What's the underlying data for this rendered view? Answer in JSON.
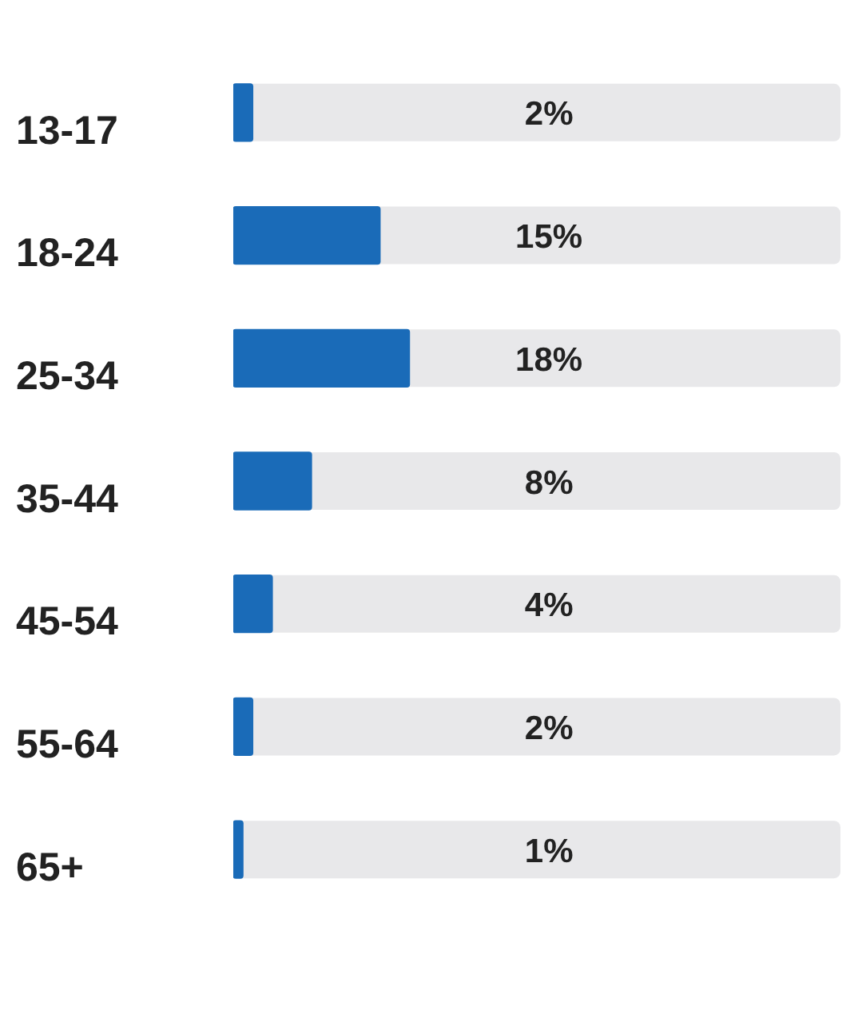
{
  "chart_data": {
    "type": "bar",
    "orientation": "horizontal",
    "categories": [
      "13-17",
      "18-24",
      "25-34",
      "35-44",
      "45-54",
      "55-64",
      "65+"
    ],
    "values": [
      2,
      15,
      18,
      8,
      4,
      2,
      1
    ],
    "value_labels": [
      "2%",
      "15%",
      "18%",
      "8%",
      "4%",
      "2%",
      "1%"
    ],
    "color": "#1a6bb8",
    "xlim": [
      0,
      62
    ],
    "grid": false,
    "tick_labels": "y"
  }
}
